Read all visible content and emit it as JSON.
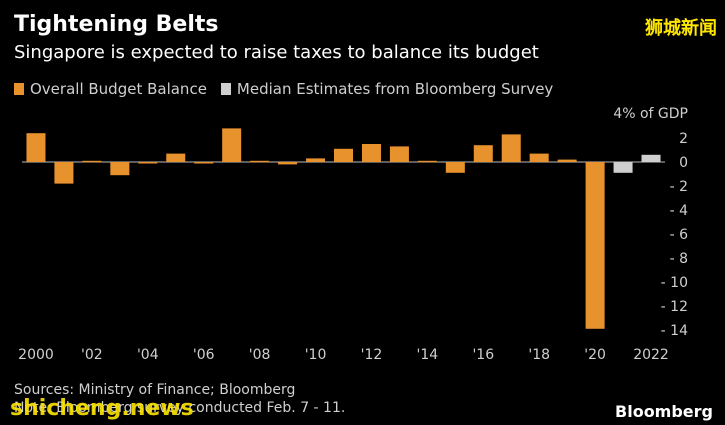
{
  "header": {
    "title": "Tightening Belts",
    "subtitle": "Singapore is expected to raise taxes to balance its budget",
    "watermark_cn": "狮城新闻"
  },
  "legend": {
    "items": [
      {
        "label": "Overall Budget Balance",
        "color": "#e8922e"
      },
      {
        "label": "Median Estimates from Bloomberg Survey",
        "color": "#cfcfcf"
      }
    ]
  },
  "footer": {
    "sources": "Sources: Ministry of Finance; Bloomberg",
    "note": "Note: Bloomberg survey conducted Feb. 7 - 11.",
    "watermark_site": "shicheng.news",
    "brand": "Bloomberg"
  },
  "colors": {
    "actual": "#e8922e",
    "estimate": "#cfcfcf",
    "zero_line": "#bdbdbd",
    "text": "#cfcfcf"
  },
  "chart_data": {
    "type": "bar",
    "title": "Tightening Belts",
    "ylabel": "4% of GDP",
    "ylim": [
      -14,
      4
    ],
    "yticks": [
      2,
      0,
      -2,
      -4,
      -6,
      -8,
      -10,
      -12,
      -14
    ],
    "x_tick_labels": [
      {
        "year": 2000,
        "label": "2000"
      },
      {
        "year": 2002,
        "label": "'02"
      },
      {
        "year": 2004,
        "label": "'04"
      },
      {
        "year": 2006,
        "label": "'06"
      },
      {
        "year": 2008,
        "label": "'08"
      },
      {
        "year": 2010,
        "label": "'10"
      },
      {
        "year": 2012,
        "label": "'12"
      },
      {
        "year": 2014,
        "label": "'14"
      },
      {
        "year": 2016,
        "label": "'16"
      },
      {
        "year": 2018,
        "label": "'18"
      },
      {
        "year": 2020,
        "label": "'20"
      },
      {
        "year": 2022,
        "label": "2022"
      }
    ],
    "series": [
      {
        "name": "Overall Budget Balance",
        "color": "#e8922e",
        "points": [
          {
            "year": 2000,
            "value": 2.4
          },
          {
            "year": 2001,
            "value": -1.8
          },
          {
            "year": 2002,
            "value": 0.1
          },
          {
            "year": 2003,
            "value": -1.1
          },
          {
            "year": 2004,
            "value": 0.0
          },
          {
            "year": 2005,
            "value": 0.7
          },
          {
            "year": 2006,
            "value": 0.0
          },
          {
            "year": 2007,
            "value": 2.8
          },
          {
            "year": 2008,
            "value": 0.1
          },
          {
            "year": 2009,
            "value": -0.2
          },
          {
            "year": 2010,
            "value": 0.3
          },
          {
            "year": 2011,
            "value": 1.1
          },
          {
            "year": 2012,
            "value": 1.5
          },
          {
            "year": 2013,
            "value": 1.3
          },
          {
            "year": 2014,
            "value": 0.1
          },
          {
            "year": 2015,
            "value": -0.9
          },
          {
            "year": 2016,
            "value": 1.4
          },
          {
            "year": 2017,
            "value": 2.3
          },
          {
            "year": 2018,
            "value": 0.7
          },
          {
            "year": 2019,
            "value": 0.2
          },
          {
            "year": 2020,
            "value": -13.9
          }
        ]
      },
      {
        "name": "Median Estimates from Bloomberg Survey",
        "color": "#cfcfcf",
        "points": [
          {
            "year": 2021,
            "value": -0.9
          },
          {
            "year": 2022,
            "value": 0.6
          }
        ]
      }
    ]
  }
}
